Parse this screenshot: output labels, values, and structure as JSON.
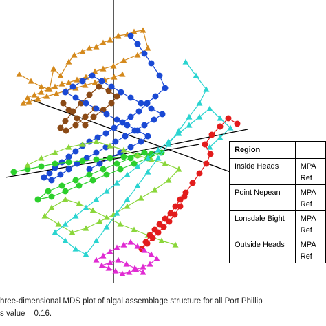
{
  "chart_data": {
    "type": "scatter",
    "title": "",
    "xlabel": "",
    "ylabel": "",
    "note": "three-dimensional MDS ordination, axes unlabeled",
    "legend": {
      "header": "Region",
      "rows": [
        {
          "region": "Inside Heads",
          "status": [
            "MPA",
            "Ref"
          ]
        },
        {
          "region": "Point Nepean",
          "status": [
            "MPA",
            "Ref"
          ]
        },
        {
          "region": "Lonsdale Bight",
          "status": [
            "MPA",
            "Ref"
          ]
        },
        {
          "region": "Outside Heads",
          "status": [
            "MPA",
            "Ref"
          ]
        }
      ]
    },
    "series": [
      {
        "color": "#d4891c",
        "marker": "triangle",
        "x": [
          28,
          45,
          60,
          72,
          78,
          88,
          100,
          108,
          120,
          130,
          140,
          150,
          160,
          172,
          185,
          195,
          208,
          215,
          200,
          180,
          165,
          150,
          138,
          125,
          112,
          100,
          90,
          80,
          70,
          60,
          50,
          40,
          34,
          42,
          55,
          68,
          82,
          96,
          110,
          124,
          138,
          152,
          166,
          178
        ],
        "y": [
          108,
          118,
          126,
          130,
          100,
          110,
          90,
          80,
          75,
          70,
          68,
          62,
          58,
          52,
          50,
          46,
          44,
          70,
          80,
          88,
          96,
          100,
          104,
          112,
          116,
          120,
          122,
          126,
          130,
          134,
          138,
          142,
          150,
          148,
          144,
          140,
          136,
          132,
          128,
          124,
          120,
          116,
          112,
          108
        ]
      },
      {
        "color": "#8b4a16",
        "marker": "circle",
        "x": [
          92,
          100,
          112,
          124,
          136,
          150,
          162,
          170,
          158,
          144,
          130,
          118,
          106,
          95,
          88,
          96,
          110,
          124,
          138
        ],
        "y": [
          150,
          160,
          172,
          182,
          170,
          160,
          150,
          140,
          132,
          126,
          138,
          150,
          162,
          176,
          186,
          190,
          182,
          170,
          158
        ]
      },
      {
        "color": "#1a49d4",
        "marker": "circle",
        "x": [
          190,
          200,
          210,
          220,
          232,
          240,
          226,
          214,
          202,
          190,
          178,
          166,
          154,
          142,
          130,
          120,
          110,
          100,
          90,
          80,
          72,
          64,
          75,
          88,
          100,
          112,
          126,
          140,
          154,
          168,
          182,
          196,
          210,
          224,
          236,
          220,
          205,
          190,
          176,
          162,
          148,
          134,
          120,
          106,
          95,
          110,
          125,
          140,
          155,
          170,
          185,
          200,
          215,
          205,
          190,
          175,
          160,
          145,
          130
        ],
        "y": [
          52,
          64,
          78,
          92,
          110,
          128,
          140,
          150,
          162,
          170,
          178,
          186,
          194,
          200,
          206,
          212,
          220,
          228,
          236,
          244,
          252,
          258,
          262,
          254,
          246,
          238,
          230,
          222,
          214,
          206,
          198,
          190,
          182,
          174,
          166,
          158,
          150,
          142,
          134,
          126,
          118,
          110,
          118,
          126,
          134,
          142,
          150,
          158,
          166,
          174,
          182,
          190,
          198,
          206,
          214,
          222,
          230,
          238,
          246
        ]
      },
      {
        "color": "#2ccf2c",
        "marker": "circle",
        "x": [
          20,
          40,
          60,
          80,
          100,
          120,
          140,
          160,
          180,
          200,
          220,
          235,
          215,
          195,
          175,
          155,
          135,
          115,
          95,
          75,
          55,
          70,
          90,
          110,
          130,
          150,
          170,
          190,
          210
        ],
        "y": [
          250,
          246,
          242,
          238,
          236,
          234,
          232,
          230,
          228,
          226,
          224,
          222,
          230,
          238,
          246,
          254,
          262,
          270,
          278,
          286,
          290,
          278,
          270,
          262,
          254,
          246,
          238,
          230,
          222
        ]
      },
      {
        "color": "#8ad63a",
        "marker": "triangle",
        "x": [
          40,
          60,
          80,
          100,
          120,
          140,
          160,
          180,
          200,
          220,
          240,
          260,
          245,
          225,
          205,
          185,
          165,
          145,
          125,
          105,
          85,
          65,
          75,
          95,
          115,
          135,
          155,
          175,
          195,
          215,
          235,
          255
        ],
        "y": [
          240,
          230,
          222,
          214,
          210,
          206,
          212,
          218,
          226,
          232,
          238,
          246,
          262,
          276,
          288,
          300,
          312,
          322,
          332,
          338,
          326,
          314,
          302,
          290,
          296,
          306,
          316,
          326,
          334,
          342,
          350,
          356
        ]
      },
      {
        "color": "#2ad4d0",
        "marker": "triangle",
        "x": [
          270,
          285,
          300,
          290,
          275,
          260,
          245,
          230,
          215,
          200,
          185,
          170,
          155,
          140,
          125,
          110,
          95,
          80,
          95,
          110,
          125,
          140,
          155,
          170,
          185,
          200,
          215,
          230,
          245,
          260,
          275,
          290,
          305,
          320,
          335,
          320,
          305
        ],
        "y": [
          90,
          110,
          130,
          150,
          170,
          190,
          210,
          230,
          250,
          270,
          290,
          310,
          330,
          350,
          370,
          362,
          350,
          338,
          326,
          314,
          302,
          290,
          278,
          266,
          254,
          242,
          230,
          218,
          206,
          194,
          182,
          170,
          158,
          172,
          186,
          200,
          214
        ]
      },
      {
        "color": "#e21c1c",
        "marker": "circle",
        "x": [
          345,
          332,
          320,
          308,
          298,
          306,
          300,
          290,
          280,
          270,
          262,
          255,
          248,
          240,
          232,
          225,
          218,
          212,
          206,
          214,
          222,
          230,
          238,
          246,
          254,
          262,
          268
        ],
        "y": [
          180,
          172,
          184,
          196,
          210,
          224,
          238,
          252,
          266,
          280,
          290,
          300,
          310,
          318,
          326,
          334,
          342,
          352,
          362,
          354,
          346,
          338,
          330,
          322,
          312,
          300,
          286
        ]
      },
      {
        "color": "#e02bd2",
        "marker": "triangle",
        "x": [
          140,
          150,
          160,
          170,
          180,
          190,
          200,
          210,
          220,
          228,
          218,
          208,
          198,
          188,
          178,
          168,
          158,
          148,
          160,
          172,
          184,
          196,
          208
        ],
        "y": [
          378,
          372,
          366,
          360,
          356,
          352,
          358,
          364,
          370,
          376,
          384,
          388,
          392,
          396,
          398,
          394,
          390,
          386,
          382,
          378,
          384,
          390,
          396
        ]
      }
    ]
  },
  "legend_table": {
    "header_region": "Region",
    "header_status": "",
    "rows": [
      {
        "region": "Inside Heads",
        "mpa": "MPA",
        "ref": "Ref"
      },
      {
        "region": "Point Nepean",
        "mpa": "MPA",
        "ref": "Ref"
      },
      {
        "region": "Lonsdale Bight",
        "mpa": "MPA",
        "ref": "Ref"
      },
      {
        "region": "Outside Heads",
        "mpa": "MPA",
        "ref": "Ref"
      }
    ]
  },
  "caption": {
    "line1": "hree-dimensional MDS plot of algal assemblage structure for all Port Phillip",
    "line2": "s value = 0.16."
  }
}
